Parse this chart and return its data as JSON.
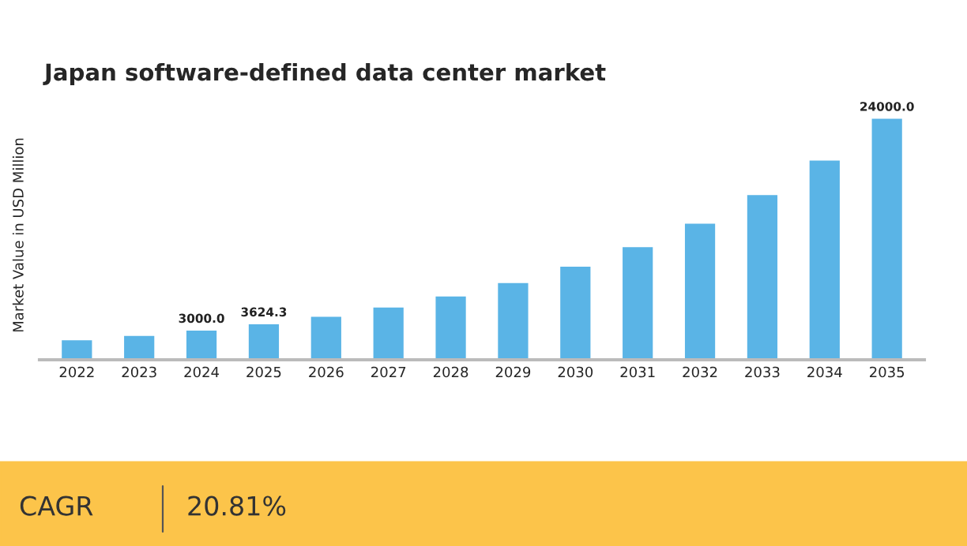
{
  "chart_data": {
    "type": "bar",
    "title": "Japan software-defined data center market",
    "ylabel": "Market Value in USD Million",
    "categories": [
      "2022",
      "2023",
      "2024",
      "2025",
      "2026",
      "2027",
      "2028",
      "2029",
      "2030",
      "2031",
      "2032",
      "2033",
      "2034",
      "2035"
    ],
    "values": [
      2050,
      2480,
      3000.0,
      3624.3,
      4380,
      5290,
      6390,
      7720,
      9330,
      11270,
      13610,
      16440,
      19870,
      24000.0
    ],
    "value_labels": [
      null,
      null,
      "3000.0",
      "3624.3",
      null,
      null,
      null,
      null,
      null,
      null,
      null,
      null,
      null,
      "24000.0"
    ],
    "color": "#5ab4e6",
    "grid": false,
    "legend": false,
    "annotations": [
      "CAGR",
      "20.81%"
    ]
  }
}
